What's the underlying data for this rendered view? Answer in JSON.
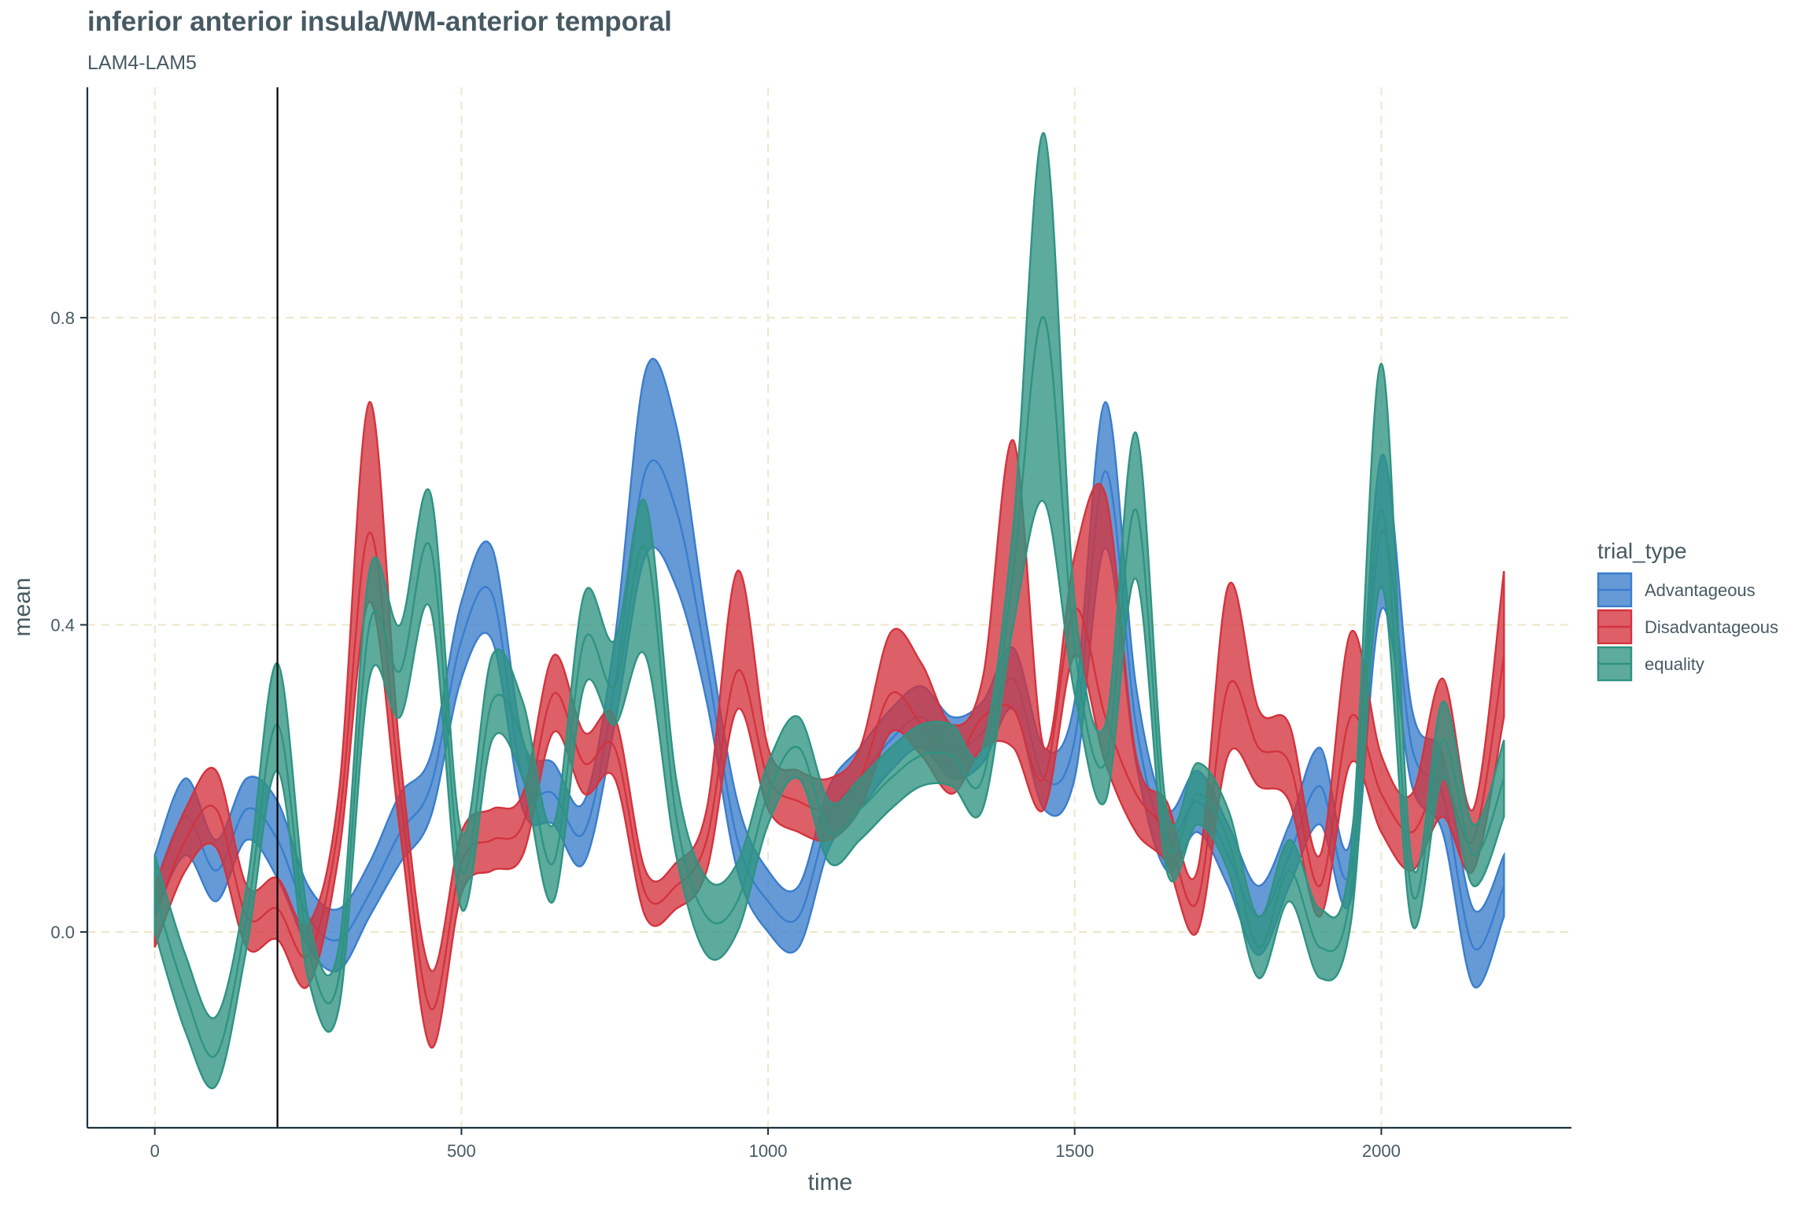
{
  "chart_data": {
    "type": "area",
    "title": "inferior anterior insula/WM-anterior temporal",
    "subtitle": "LAM4-LAM5",
    "xlabel": "time",
    "ylabel": "mean",
    "xlim": [
      -110,
      2310
    ],
    "ylim": [
      -0.255,
      1.1
    ],
    "x_ticks": [
      0,
      500,
      1000,
      1500,
      2000
    ],
    "x_tick_labels": [
      "0",
      "500",
      "1000",
      "1500",
      "2000"
    ],
    "y_ticks": [
      0.0,
      0.4,
      0.8
    ],
    "y_tick_labels": [
      "0.0",
      "0.4",
      "0.8"
    ],
    "grid": "dashed major gridlines",
    "vline_x": 200,
    "legend": {
      "title": "trial_type",
      "position": "right"
    },
    "x": [
      0,
      50,
      100,
      150,
      200,
      250,
      300,
      350,
      400,
      450,
      500,
      550,
      600,
      650,
      700,
      750,
      800,
      850,
      900,
      950,
      1000,
      1050,
      1100,
      1150,
      1200,
      1250,
      1300,
      1350,
      1400,
      1450,
      1500,
      1550,
      1600,
      1650,
      1700,
      1750,
      1800,
      1850,
      1900,
      1950,
      2000,
      2050,
      2100,
      2150,
      2200
    ],
    "series": [
      {
        "name": "Advantageous",
        "color": "#3a7dcc",
        "mean": [
          0.06,
          0.15,
          0.08,
          0.16,
          0.12,
          0.02,
          -0.01,
          0.05,
          0.13,
          0.19,
          0.38,
          0.44,
          0.2,
          0.18,
          0.13,
          0.32,
          0.6,
          0.55,
          0.35,
          0.12,
          0.04,
          0.02,
          0.15,
          0.2,
          0.25,
          0.28,
          0.24,
          0.26,
          0.33,
          0.2,
          0.25,
          0.6,
          0.27,
          0.12,
          0.17,
          0.1,
          0.02,
          0.1,
          0.19,
          0.08,
          0.52,
          0.24,
          0.18,
          -0.02,
          0.06
        ],
        "lower": [
          0.02,
          0.1,
          0.04,
          0.12,
          0.07,
          -0.02,
          -0.05,
          0.02,
          0.09,
          0.15,
          0.33,
          0.38,
          0.16,
          0.14,
          0.09,
          0.27,
          0.49,
          0.45,
          0.3,
          0.08,
          0.0,
          -0.02,
          0.11,
          0.16,
          0.21,
          0.24,
          0.2,
          0.22,
          0.29,
          0.16,
          0.2,
          0.5,
          0.22,
          0.08,
          0.13,
          0.06,
          -0.03,
          0.06,
          0.14,
          0.04,
          0.42,
          0.19,
          0.13,
          -0.07,
          0.02
        ],
        "upper": [
          0.1,
          0.2,
          0.12,
          0.2,
          0.17,
          0.06,
          0.03,
          0.09,
          0.18,
          0.23,
          0.43,
          0.5,
          0.25,
          0.22,
          0.17,
          0.38,
          0.73,
          0.66,
          0.4,
          0.17,
          0.08,
          0.06,
          0.19,
          0.24,
          0.29,
          0.32,
          0.28,
          0.3,
          0.37,
          0.24,
          0.3,
          0.69,
          0.32,
          0.16,
          0.21,
          0.14,
          0.06,
          0.14,
          0.24,
          0.12,
          0.62,
          0.29,
          0.23,
          0.03,
          0.1
        ]
      },
      {
        "name": "Disadvantageous",
        "color": "#d4333d",
        "mean": [
          0.02,
          0.12,
          0.16,
          0.02,
          0.03,
          -0.03,
          0.14,
          0.52,
          0.18,
          -0.1,
          0.09,
          0.12,
          0.14,
          0.31,
          0.22,
          0.24,
          0.05,
          0.06,
          0.12,
          0.34,
          0.2,
          0.17,
          0.16,
          0.2,
          0.31,
          0.27,
          0.22,
          0.28,
          0.29,
          0.2,
          0.42,
          0.28,
          0.18,
          0.13,
          0.04,
          0.32,
          0.24,
          0.22,
          0.06,
          0.28,
          0.18,
          0.13,
          0.2,
          0.12,
          0.36
        ],
        "lower": [
          -0.02,
          0.08,
          0.11,
          -0.02,
          -0.01,
          -0.07,
          0.1,
          0.43,
          0.13,
          -0.15,
          0.05,
          0.08,
          0.1,
          0.26,
          0.18,
          0.2,
          0.02,
          0.03,
          0.08,
          0.29,
          0.16,
          0.13,
          0.12,
          0.16,
          0.26,
          0.23,
          0.18,
          0.24,
          0.24,
          0.16,
          0.36,
          0.22,
          0.13,
          0.09,
          0.0,
          0.23,
          0.19,
          0.17,
          0.02,
          0.22,
          0.13,
          0.08,
          0.15,
          0.08,
          0.28
        ],
        "upper": [
          0.06,
          0.16,
          0.21,
          0.06,
          0.07,
          0.01,
          0.18,
          0.69,
          0.23,
          -0.05,
          0.13,
          0.16,
          0.18,
          0.36,
          0.26,
          0.28,
          0.08,
          0.09,
          0.16,
          0.47,
          0.24,
          0.21,
          0.2,
          0.24,
          0.39,
          0.35,
          0.27,
          0.33,
          0.64,
          0.24,
          0.49,
          0.57,
          0.23,
          0.17,
          0.08,
          0.45,
          0.29,
          0.27,
          0.1,
          0.39,
          0.23,
          0.18,
          0.33,
          0.16,
          0.47
        ]
      },
      {
        "name": "equality",
        "color": "#2f9382",
        "mean": [
          0.05,
          -0.08,
          -0.16,
          0.02,
          0.27,
          -0.02,
          -0.06,
          0.4,
          0.34,
          0.5,
          0.08,
          0.3,
          0.25,
          0.09,
          0.38,
          0.32,
          0.5,
          0.15,
          0.02,
          0.04,
          0.18,
          0.24,
          0.13,
          0.16,
          0.2,
          0.23,
          0.23,
          0.2,
          0.47,
          0.8,
          0.37,
          0.22,
          0.55,
          0.12,
          0.18,
          0.12,
          -0.02,
          0.08,
          -0.02,
          0.05,
          0.55,
          0.05,
          0.25,
          0.1,
          0.2
        ],
        "lower": [
          0.0,
          -0.13,
          -0.2,
          -0.02,
          0.21,
          -0.06,
          -0.1,
          0.33,
          0.28,
          0.42,
          0.03,
          0.25,
          0.2,
          0.04,
          0.32,
          0.27,
          0.36,
          0.1,
          -0.03,
          0.0,
          0.14,
          0.2,
          0.09,
          0.12,
          0.16,
          0.19,
          0.19,
          0.16,
          0.4,
          0.56,
          0.31,
          0.17,
          0.46,
          0.08,
          0.14,
          0.08,
          -0.06,
          0.04,
          -0.06,
          0.01,
          0.45,
          0.01,
          0.2,
          0.06,
          0.15
        ],
        "upper": [
          0.1,
          -0.03,
          -0.11,
          0.06,
          0.35,
          0.02,
          -0.02,
          0.47,
          0.4,
          0.57,
          0.13,
          0.36,
          0.3,
          0.14,
          0.44,
          0.38,
          0.56,
          0.2,
          0.07,
          0.09,
          0.22,
          0.28,
          0.17,
          0.2,
          0.24,
          0.27,
          0.27,
          0.24,
          0.53,
          1.04,
          0.43,
          0.27,
          0.65,
          0.16,
          0.22,
          0.16,
          0.02,
          0.12,
          0.03,
          0.1,
          0.74,
          0.09,
          0.3,
          0.14,
          0.25
        ]
      }
    ]
  }
}
